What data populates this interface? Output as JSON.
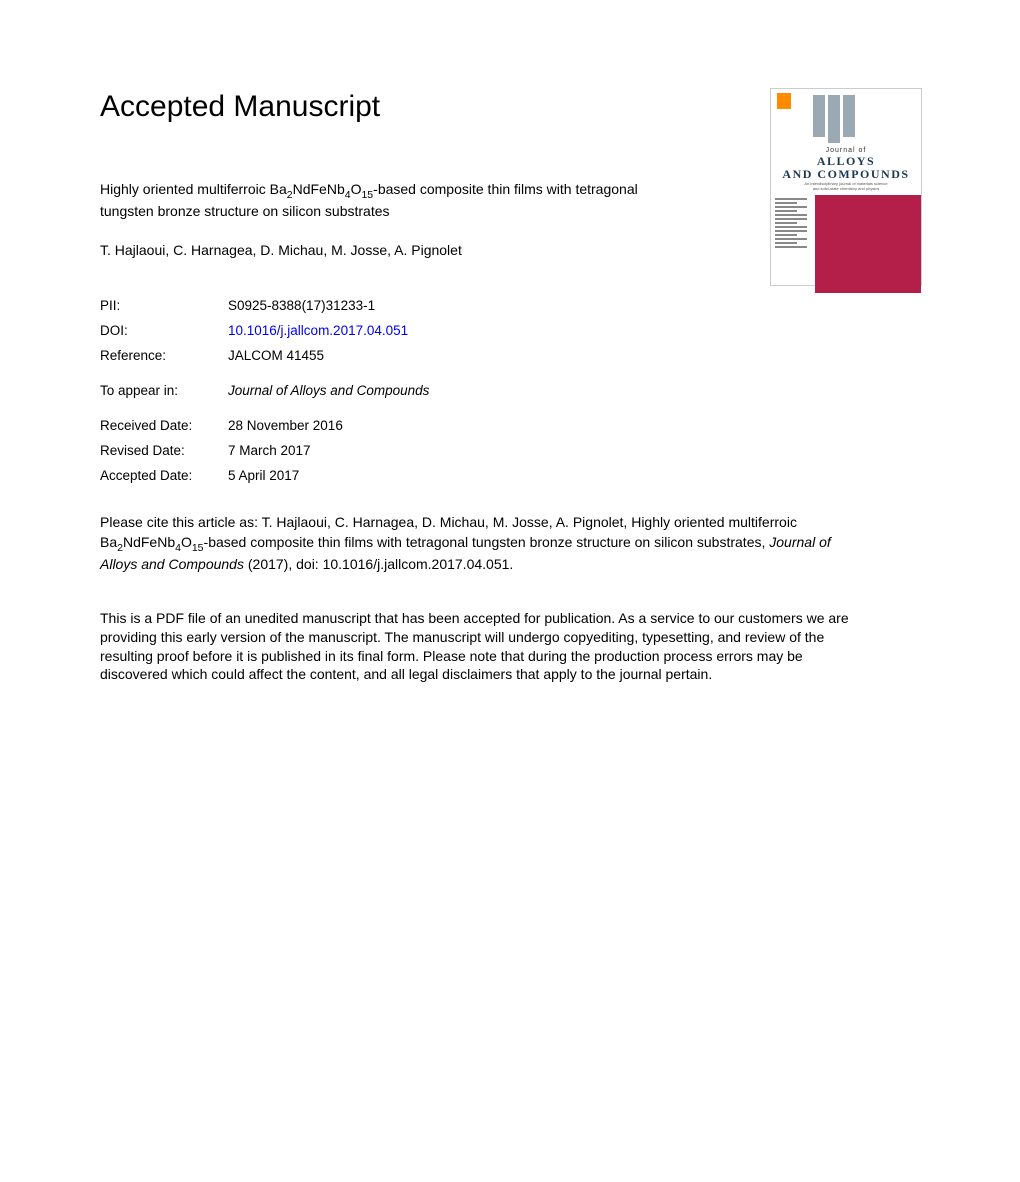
{
  "heading": "Accepted Manuscript",
  "article": {
    "title_html": "Highly oriented multiferroic Ba<sub>2</sub>NdFeNb<sub>4</sub>O<sub>15</sub>-based composite thin films with tetragonal tungsten bronze structure on silicon substrates",
    "authors": "T. Hajlaoui, C. Harnagea, D. Michau, M. Josse, A. Pignolet"
  },
  "meta": {
    "pii_label": "PII:",
    "pii_value": "S0925-8388(17)31233-1",
    "doi_label": "DOI:",
    "doi_value": "10.1016/j.jallcom.2017.04.051",
    "ref_label": "Reference:",
    "ref_value": "JALCOM 41455",
    "appear_label": "To appear in:",
    "appear_value": "Journal of Alloys and Compounds",
    "received_label": "Received Date:",
    "received_value": "28 November 2016",
    "revised_label": "Revised Date:",
    "revised_value": "7 March 2017",
    "accepted_label": "Accepted Date:",
    "accepted_value": "5 April 2017"
  },
  "citation_html": "Please cite this article as: T. Hajlaoui, C. Harnagea, D. Michau, M. Josse, A. Pignolet, Highly oriented multiferroic Ba<sub>2</sub>NdFeNb<sub>4</sub>O<sub>15</sub>-based composite thin films with tetragonal tungsten bronze structure on silicon substrates, <span class=\"italic\">Journal of Alloys and Compounds</span> (2017), doi: 10.1016/j.jallcom.2017.04.051.",
  "disclaimer": "This is a PDF file of an unedited manuscript that has been accepted for publication. As a service to our customers we are providing this early version of the manuscript. The manuscript will undergo copyediting, typesetting, and review of the resulting proof before it is published in its final form. Please note that during the production process errors may be discovered which could affect the content, and all legal disclaimers that apply to the journal pertain.",
  "cover": {
    "journal_of": "Journal of",
    "name_line1": "ALLOYS",
    "name_line2": "AND COMPOUNDS",
    "accent_color": "#b41f4a",
    "bar_color": "#8fa3af",
    "logo_color": "#ff8a00"
  },
  "colors": {
    "text": "#000000",
    "link": "#0000ee",
    "background": "#ffffff"
  }
}
